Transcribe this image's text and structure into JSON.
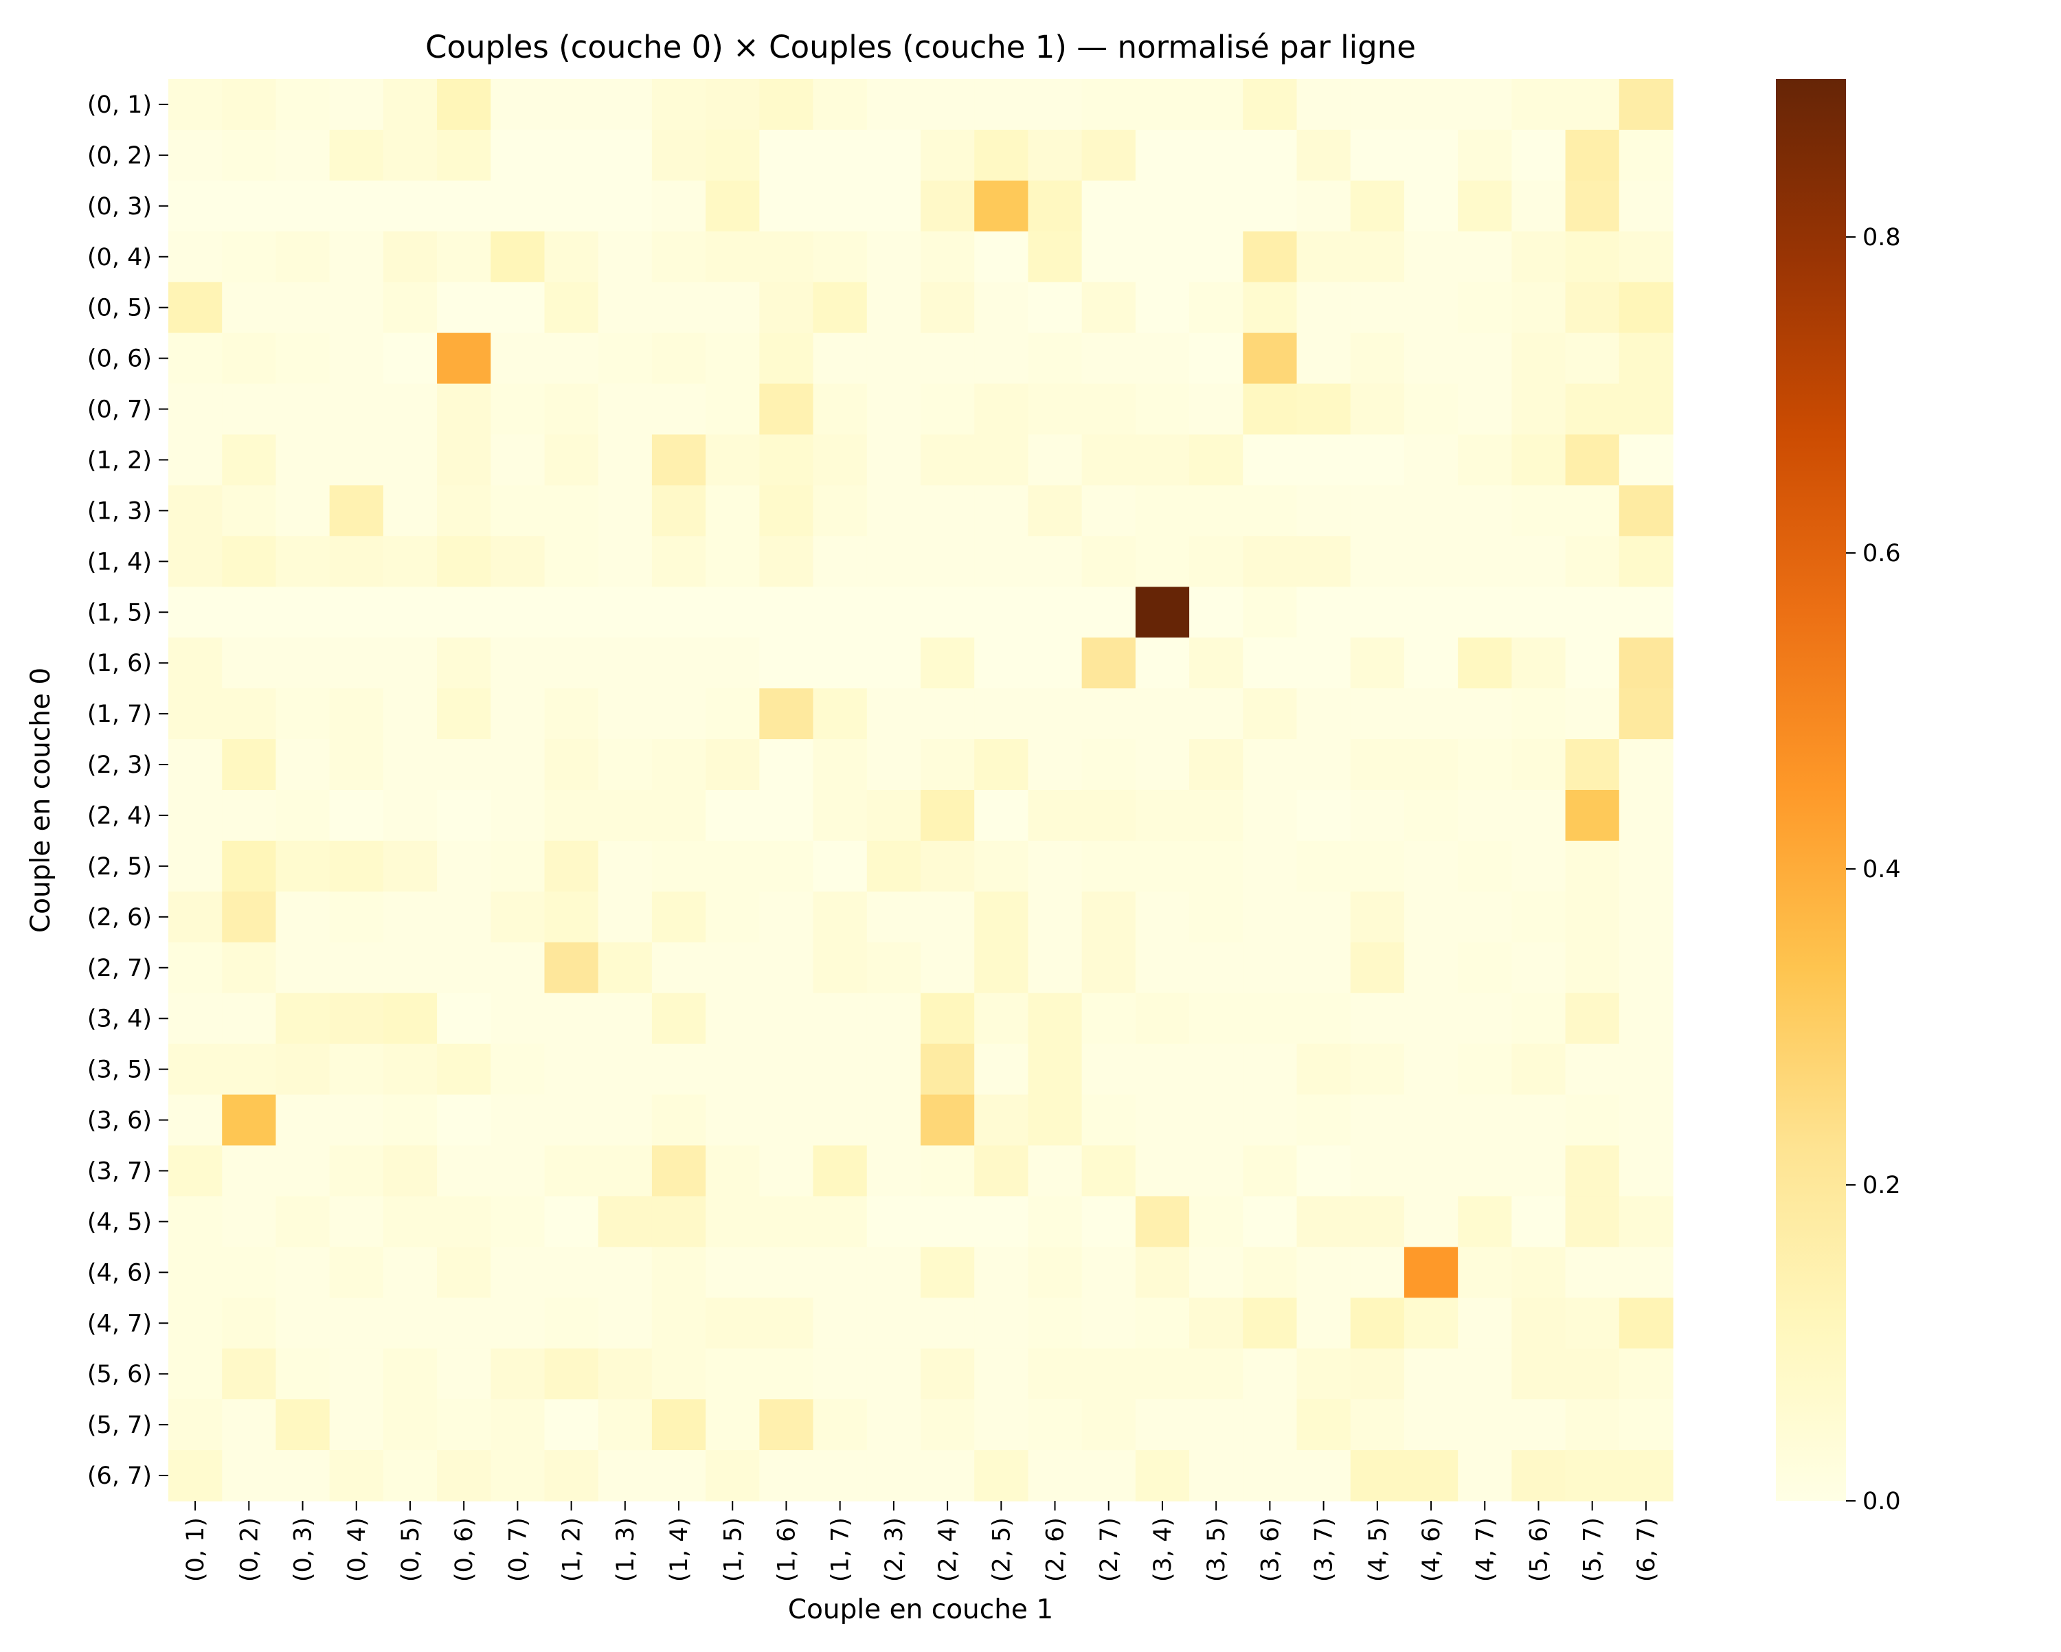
{
  "chart_data": {
    "type": "heatmap",
    "title": "Couples (couche 0)  ×  Couples (couche 1) — normalisé par ligne",
    "xlabel": "Couple en couche 1",
    "ylabel": "Couple en couche 0",
    "x_categories": [
      "(0, 1)",
      "(0, 2)",
      "(0, 3)",
      "(0, 4)",
      "(0, 5)",
      "(0, 6)",
      "(0, 7)",
      "(1, 2)",
      "(1, 3)",
      "(1, 4)",
      "(1, 5)",
      "(1, 6)",
      "(1, 7)",
      "(2, 3)",
      "(2, 4)",
      "(2, 5)",
      "(2, 6)",
      "(2, 7)",
      "(3, 4)",
      "(3, 5)",
      "(3, 6)",
      "(3, 7)",
      "(4, 5)",
      "(4, 6)",
      "(4, 7)",
      "(5, 6)",
      "(5, 7)",
      "(6, 7)"
    ],
    "y_categories": [
      "(0, 1)",
      "(0, 2)",
      "(0, 3)",
      "(0, 4)",
      "(0, 5)",
      "(0, 6)",
      "(0, 7)",
      "(1, 2)",
      "(1, 3)",
      "(1, 4)",
      "(1, 5)",
      "(1, 6)",
      "(1, 7)",
      "(2, 3)",
      "(2, 4)",
      "(2, 5)",
      "(2, 6)",
      "(2, 7)",
      "(3, 4)",
      "(3, 5)",
      "(3, 6)",
      "(3, 7)",
      "(4, 5)",
      "(4, 6)",
      "(4, 7)",
      "(5, 6)",
      "(5, 7)",
      "(6, 7)"
    ],
    "values": [
      [
        0.03,
        0.04,
        0.02,
        0.01,
        0.04,
        0.12,
        0.01,
        0.01,
        0.01,
        0.04,
        0.05,
        0.07,
        0.03,
        0.01,
        0.01,
        0.01,
        0.01,
        0.02,
        0.02,
        0.02,
        0.07,
        0.01,
        0.01,
        0.01,
        0.01,
        0.03,
        0.03,
        0.17
      ],
      [
        0.01,
        0.02,
        0.01,
        0.06,
        0.04,
        0.06,
        0.0,
        0.0,
        0.0,
        0.05,
        0.06,
        0.0,
        0.0,
        0.0,
        0.04,
        0.09,
        0.05,
        0.08,
        0.0,
        0.0,
        0.0,
        0.05,
        0.0,
        0.0,
        0.03,
        0.0,
        0.16,
        0.02
      ],
      [
        0.0,
        0.0,
        0.0,
        0.0,
        0.0,
        0.0,
        0.0,
        0.0,
        0.0,
        0.01,
        0.09,
        0.0,
        0.0,
        0.0,
        0.08,
        0.32,
        0.1,
        0.0,
        0.0,
        0.0,
        0.0,
        0.01,
        0.07,
        0.0,
        0.07,
        0.01,
        0.15,
        0.01
      ],
      [
        0.01,
        0.02,
        0.03,
        0.01,
        0.05,
        0.03,
        0.12,
        0.04,
        0.01,
        0.03,
        0.04,
        0.04,
        0.03,
        0.01,
        0.03,
        0.0,
        0.09,
        0.0,
        0.0,
        0.0,
        0.16,
        0.04,
        0.04,
        0.01,
        0.01,
        0.04,
        0.06,
        0.04
      ],
      [
        0.13,
        0.01,
        0.01,
        0.01,
        0.03,
        0.0,
        0.0,
        0.06,
        0.01,
        0.01,
        0.01,
        0.05,
        0.09,
        0.01,
        0.05,
        0.01,
        0.0,
        0.04,
        0.0,
        0.02,
        0.06,
        0.01,
        0.01,
        0.01,
        0.02,
        0.03,
        0.08,
        0.12
      ],
      [
        0.02,
        0.03,
        0.02,
        0.01,
        0.0,
        0.4,
        0.01,
        0.01,
        0.02,
        0.03,
        0.02,
        0.06,
        0.01,
        0.01,
        0.01,
        0.01,
        0.02,
        0.01,
        0.01,
        0.0,
        0.27,
        0.01,
        0.03,
        0.01,
        0.01,
        0.04,
        0.03,
        0.07
      ],
      [
        0.01,
        0.01,
        0.01,
        0.01,
        0.01,
        0.05,
        0.02,
        0.03,
        0.01,
        0.01,
        0.02,
        0.14,
        0.03,
        0.01,
        0.02,
        0.04,
        0.03,
        0.03,
        0.02,
        0.01,
        0.1,
        0.09,
        0.04,
        0.02,
        0.01,
        0.04,
        0.07,
        0.07
      ],
      [
        0.01,
        0.06,
        0.01,
        0.01,
        0.01,
        0.05,
        0.01,
        0.04,
        0.01,
        0.15,
        0.04,
        0.06,
        0.04,
        0.01,
        0.04,
        0.04,
        0.01,
        0.04,
        0.04,
        0.06,
        0.0,
        0.0,
        0.0,
        0.01,
        0.03,
        0.06,
        0.16,
        0.0
      ],
      [
        0.05,
        0.03,
        0.01,
        0.14,
        0.01,
        0.04,
        0.02,
        0.02,
        0.01,
        0.08,
        0.02,
        0.07,
        0.03,
        0.01,
        0.01,
        0.01,
        0.05,
        0.01,
        0.02,
        0.02,
        0.02,
        0.01,
        0.01,
        0.01,
        0.01,
        0.02,
        0.02,
        0.18
      ],
      [
        0.05,
        0.07,
        0.04,
        0.05,
        0.04,
        0.07,
        0.05,
        0.02,
        0.01,
        0.04,
        0.02,
        0.05,
        0.01,
        0.01,
        0.01,
        0.01,
        0.01,
        0.03,
        0.02,
        0.03,
        0.05,
        0.05,
        0.01,
        0.01,
        0.01,
        0.01,
        0.03,
        0.07
      ],
      [
        0.0,
        0.0,
        0.0,
        0.0,
        0.0,
        0.0,
        0.0,
        0.0,
        0.0,
        0.0,
        0.0,
        0.0,
        0.0,
        0.0,
        0.0,
        0.0,
        0.0,
        0.0,
        0.9,
        0.0,
        0.02,
        0.0,
        0.0,
        0.0,
        0.0,
        0.0,
        0.0,
        0.0
      ],
      [
        0.04,
        0.01,
        0.01,
        0.01,
        0.01,
        0.04,
        0.01,
        0.01,
        0.01,
        0.01,
        0.01,
        0.0,
        0.0,
        0.0,
        0.06,
        0.0,
        0.0,
        0.2,
        0.0,
        0.04,
        0.0,
        0.0,
        0.04,
        0.0,
        0.1,
        0.04,
        0.0,
        0.2
      ],
      [
        0.04,
        0.04,
        0.02,
        0.03,
        0.01,
        0.06,
        0.01,
        0.03,
        0.01,
        0.01,
        0.02,
        0.19,
        0.06,
        0.01,
        0.01,
        0.01,
        0.01,
        0.01,
        0.01,
        0.01,
        0.04,
        0.01,
        0.01,
        0.01,
        0.01,
        0.02,
        0.01,
        0.19
      ],
      [
        0.01,
        0.1,
        0.01,
        0.03,
        0.01,
        0.01,
        0.01,
        0.04,
        0.02,
        0.03,
        0.05,
        0.0,
        0.03,
        0.01,
        0.03,
        0.07,
        0.01,
        0.02,
        0.01,
        0.05,
        0.01,
        0.01,
        0.03,
        0.03,
        0.02,
        0.03,
        0.14,
        0.01
      ],
      [
        0.01,
        0.01,
        0.02,
        0.0,
        0.01,
        0.0,
        0.01,
        0.03,
        0.03,
        0.03,
        0.0,
        0.0,
        0.03,
        0.04,
        0.13,
        0.0,
        0.04,
        0.04,
        0.03,
        0.03,
        0.01,
        0.0,
        0.01,
        0.02,
        0.01,
        0.01,
        0.32,
        0.01
      ],
      [
        0.01,
        0.12,
        0.06,
        0.07,
        0.05,
        0.01,
        0.02,
        0.08,
        0.01,
        0.02,
        0.02,
        0.02,
        0.0,
        0.07,
        0.05,
        0.03,
        0.01,
        0.02,
        0.02,
        0.02,
        0.01,
        0.02,
        0.02,
        0.01,
        0.02,
        0.01,
        0.03,
        0.01
      ],
      [
        0.05,
        0.15,
        0.01,
        0.02,
        0.01,
        0.01,
        0.04,
        0.06,
        0.01,
        0.06,
        0.02,
        0.01,
        0.04,
        0.01,
        0.01,
        0.07,
        0.01,
        0.05,
        0.01,
        0.02,
        0.01,
        0.01,
        0.05,
        0.01,
        0.01,
        0.02,
        0.03,
        0.01
      ],
      [
        0.02,
        0.04,
        0.01,
        0.01,
        0.01,
        0.01,
        0.01,
        0.2,
        0.06,
        0.01,
        0.01,
        0.01,
        0.04,
        0.03,
        0.01,
        0.07,
        0.01,
        0.05,
        0.01,
        0.01,
        0.01,
        0.01,
        0.08,
        0.01,
        0.02,
        0.01,
        0.03,
        0.01
      ],
      [
        0.01,
        0.01,
        0.07,
        0.08,
        0.09,
        0.0,
        0.01,
        0.01,
        0.01,
        0.07,
        0.01,
        0.01,
        0.01,
        0.01,
        0.11,
        0.03,
        0.07,
        0.02,
        0.03,
        0.02,
        0.02,
        0.02,
        0.01,
        0.01,
        0.01,
        0.02,
        0.08,
        0.01
      ],
      [
        0.04,
        0.04,
        0.05,
        0.03,
        0.04,
        0.06,
        0.02,
        0.01,
        0.01,
        0.01,
        0.01,
        0.01,
        0.01,
        0.01,
        0.18,
        0.01,
        0.07,
        0.01,
        0.01,
        0.01,
        0.01,
        0.04,
        0.03,
        0.01,
        0.02,
        0.04,
        0.01,
        0.01
      ],
      [
        0.01,
        0.33,
        0.01,
        0.01,
        0.02,
        0.0,
        0.01,
        0.01,
        0.01,
        0.03,
        0.01,
        0.01,
        0.01,
        0.01,
        0.27,
        0.05,
        0.07,
        0.02,
        0.01,
        0.01,
        0.01,
        0.02,
        0.01,
        0.01,
        0.01,
        0.01,
        0.02,
        0.01
      ],
      [
        0.06,
        0.01,
        0.01,
        0.03,
        0.05,
        0.01,
        0.01,
        0.03,
        0.03,
        0.15,
        0.03,
        0.01,
        0.1,
        0.01,
        0.02,
        0.08,
        0.01,
        0.06,
        0.01,
        0.01,
        0.03,
        0.0,
        0.01,
        0.01,
        0.01,
        0.01,
        0.08,
        0.01
      ],
      [
        0.02,
        0.01,
        0.03,
        0.01,
        0.03,
        0.03,
        0.02,
        0.0,
        0.08,
        0.08,
        0.03,
        0.03,
        0.03,
        0.0,
        0.0,
        0.0,
        0.02,
        0.0,
        0.15,
        0.02,
        0.0,
        0.05,
        0.05,
        0.01,
        0.06,
        0.0,
        0.08,
        0.04
      ],
      [
        0.02,
        0.02,
        0.01,
        0.03,
        0.01,
        0.04,
        0.01,
        0.01,
        0.01,
        0.03,
        0.01,
        0.01,
        0.01,
        0.01,
        0.07,
        0.01,
        0.03,
        0.01,
        0.05,
        0.01,
        0.03,
        0.01,
        0.01,
        0.45,
        0.03,
        0.04,
        0.01,
        0.01
      ],
      [
        0.02,
        0.03,
        0.01,
        0.01,
        0.01,
        0.01,
        0.01,
        0.02,
        0.01,
        0.03,
        0.04,
        0.04,
        0.01,
        0.01,
        0.01,
        0.01,
        0.02,
        0.01,
        0.02,
        0.05,
        0.1,
        0.01,
        0.11,
        0.06,
        0.01,
        0.05,
        0.04,
        0.13
      ],
      [
        0.02,
        0.08,
        0.02,
        0.01,
        0.03,
        0.01,
        0.05,
        0.08,
        0.05,
        0.03,
        0.02,
        0.02,
        0.01,
        0.01,
        0.05,
        0.01,
        0.03,
        0.03,
        0.03,
        0.03,
        0.01,
        0.04,
        0.05,
        0.01,
        0.01,
        0.05,
        0.05,
        0.03
      ],
      [
        0.03,
        0.01,
        0.1,
        0.01,
        0.03,
        0.02,
        0.03,
        0.0,
        0.03,
        0.13,
        0.02,
        0.15,
        0.03,
        0.01,
        0.03,
        0.01,
        0.02,
        0.03,
        0.01,
        0.01,
        0.01,
        0.06,
        0.03,
        0.01,
        0.01,
        0.01,
        0.03,
        0.02
      ],
      [
        0.06,
        0.01,
        0.01,
        0.04,
        0.02,
        0.05,
        0.03,
        0.05,
        0.01,
        0.01,
        0.04,
        0.01,
        0.01,
        0.01,
        0.01,
        0.06,
        0.01,
        0.01,
        0.06,
        0.01,
        0.01,
        0.01,
        0.1,
        0.1,
        0.01,
        0.08,
        0.07,
        0.07
      ]
    ],
    "colorbar": {
      "min": 0.0,
      "max": 0.9,
      "ticks": [
        0.0,
        0.2,
        0.4,
        0.6,
        0.8
      ],
      "tick_labels": [
        "0.0",
        "0.2",
        "0.4",
        "0.6",
        "0.8"
      ],
      "colormap": "YlOrBr"
    },
    "grid": false
  }
}
